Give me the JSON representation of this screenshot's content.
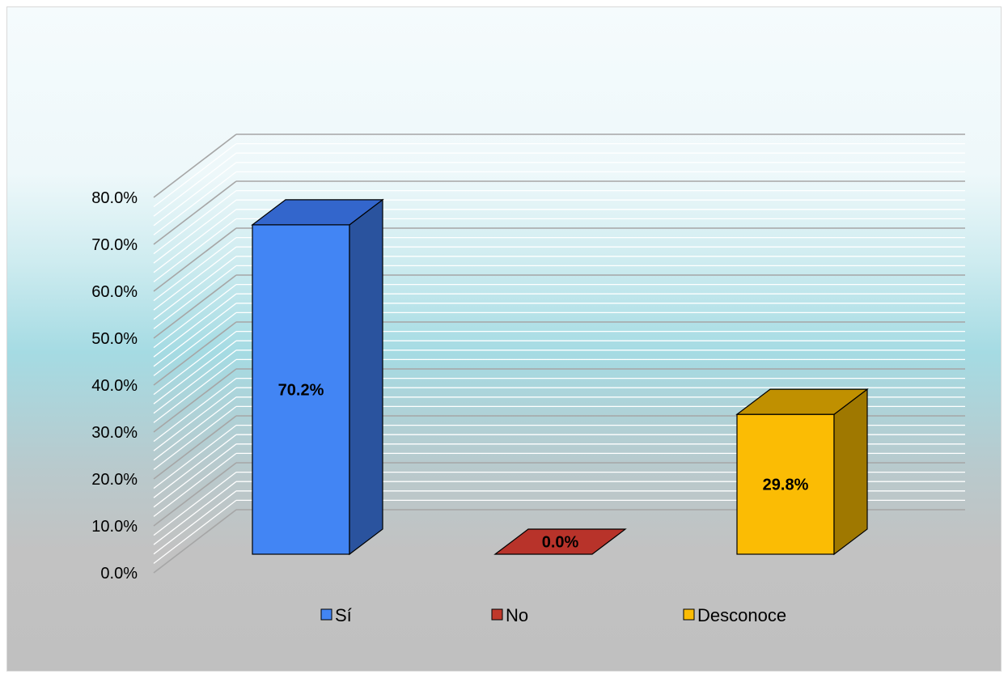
{
  "chart_data": {
    "type": "bar",
    "categories": [
      "Sí",
      "No",
      "Desconoce"
    ],
    "values": [
      70.2,
      0.0,
      29.8
    ],
    "data_labels": [
      "70.2%",
      "0.0%",
      "29.8%"
    ],
    "title": "",
    "xlabel": "",
    "ylabel": "",
    "ylim": [
      0,
      80
    ],
    "yticks": [
      "0.0%",
      "10.0%",
      "20.0%",
      "30.0%",
      "40.0%",
      "50.0%",
      "60.0%",
      "70.0%",
      "80.0%"
    ],
    "grid": true,
    "three_d": true,
    "legend": "bottom",
    "colors": {
      "Sí": {
        "front": "#4285f4",
        "top": "#3366cc",
        "side": "#2a539e"
      },
      "No": {
        "front": "#c0392b",
        "top": "#b8332a",
        "side": "#8e2620"
      },
      "Desconoce": {
        "front": "#fbbc04",
        "top": "#c09000",
        "side": "#9f7800"
      }
    }
  }
}
